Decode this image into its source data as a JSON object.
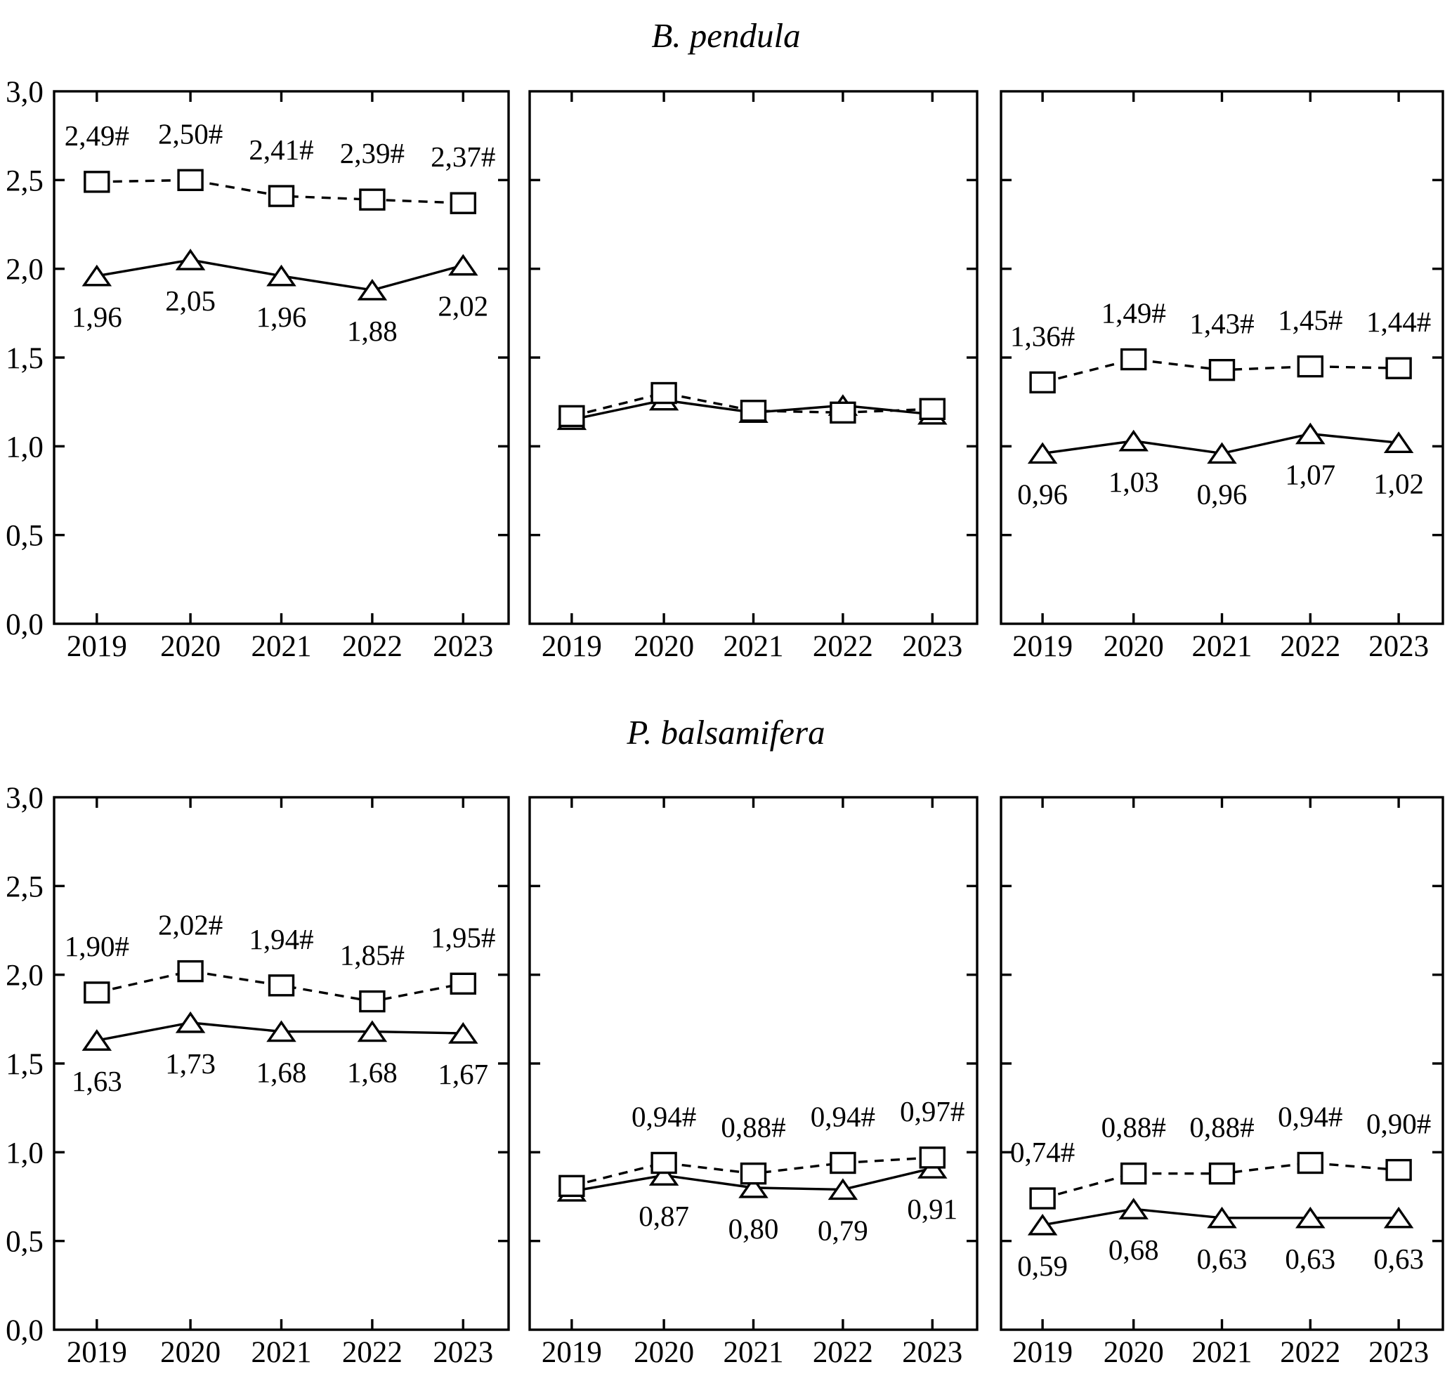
{
  "chart_data": [
    {
      "type": "line",
      "title": "B. pendula",
      "x": [
        "2019",
        "2020",
        "2021",
        "2022",
        "2023"
      ],
      "ylim": [
        0.0,
        3.0
      ],
      "ytick_step": 0.5,
      "ytick_labels": [
        "0,0",
        "0,5",
        "1,0",
        "1,5",
        "2,0",
        "2,5",
        "3,0"
      ],
      "legend": "none",
      "grid": false,
      "panels": [
        {
          "series": [
            {
              "name": "squares-dashed",
              "marker": "square",
              "line": "dashed",
              "values": [
                2.49,
                2.5,
                2.41,
                2.39,
                2.37
              ],
              "point_labels": [
                "2,49#",
                "2,50#",
                "2,41#",
                "2,39#",
                "2,37#"
              ]
            },
            {
              "name": "triangles-solid",
              "marker": "triangle",
              "line": "solid",
              "values": [
                1.96,
                2.05,
                1.96,
                1.88,
                2.02
              ],
              "point_labels": [
                "1,96",
                "2,05",
                "1,96",
                "1,88",
                "2,02"
              ]
            }
          ]
        },
        {
          "series": [
            {
              "name": "squares-dashed",
              "marker": "square",
              "line": "dashed",
              "values": [
                1.17,
                1.3,
                1.2,
                1.19,
                1.21
              ],
              "point_labels": [
                null,
                null,
                null,
                null,
                null
              ]
            },
            {
              "name": "triangles-solid",
              "marker": "triangle",
              "line": "solid",
              "values": [
                1.15,
                1.26,
                1.19,
                1.23,
                1.18
              ],
              "point_labels": [
                null,
                null,
                null,
                null,
                null
              ]
            }
          ]
        },
        {
          "series": [
            {
              "name": "squares-dashed",
              "marker": "square",
              "line": "dashed",
              "values": [
                1.36,
                1.49,
                1.43,
                1.45,
                1.44
              ],
              "point_labels": [
                "1,36#",
                "1,49#",
                "1,43#",
                "1,45#",
                "1,44#"
              ]
            },
            {
              "name": "triangles-solid",
              "marker": "triangle",
              "line": "solid",
              "values": [
                0.96,
                1.03,
                0.96,
                1.07,
                1.02
              ],
              "point_labels": [
                "0,96",
                "1,03",
                "0,96",
                "1,07",
                "1,02"
              ]
            }
          ]
        }
      ]
    },
    {
      "type": "line",
      "title": "P. balsamifera",
      "x": [
        "2019",
        "2020",
        "2021",
        "2022",
        "2023"
      ],
      "ylim": [
        0.0,
        3.0
      ],
      "ytick_step": 0.5,
      "ytick_labels": [
        "0,0",
        "0,5",
        "1,0",
        "1,5",
        "2,0",
        "2,5",
        "3,0"
      ],
      "legend": "none",
      "grid": false,
      "panels": [
        {
          "series": [
            {
              "name": "squares-dashed",
              "marker": "square",
              "line": "dashed",
              "values": [
                1.9,
                2.02,
                1.94,
                1.85,
                1.95
              ],
              "point_labels": [
                "1,90#",
                "2,02#",
                "1,94#",
                "1,85#",
                "1,95#"
              ]
            },
            {
              "name": "triangles-solid",
              "marker": "triangle",
              "line": "solid",
              "values": [
                1.63,
                1.73,
                1.68,
                1.68,
                1.67
              ],
              "point_labels": [
                "1,63",
                "1,73",
                "1,68",
                "1,68",
                "1,67"
              ]
            }
          ]
        },
        {
          "series": [
            {
              "name": "squares-dashed",
              "marker": "square",
              "line": "dashed",
              "values": [
                0.81,
                0.94,
                0.88,
                0.94,
                0.97
              ],
              "point_labels": [
                null,
                "0,94#",
                "0,88#",
                "0,94#",
                "0,97#"
              ]
            },
            {
              "name": "triangles-solid",
              "marker": "triangle",
              "line": "solid",
              "values": [
                0.78,
                0.87,
                0.8,
                0.79,
                0.91
              ],
              "point_labels": [
                null,
                "0,87",
                "0,80",
                "0,79",
                "0,91"
              ]
            }
          ]
        },
        {
          "series": [
            {
              "name": "squares-dashed",
              "marker": "square",
              "line": "dashed",
              "values": [
                0.74,
                0.88,
                0.88,
                0.94,
                0.9
              ],
              "point_labels": [
                "0,74#",
                "0,88#",
                "0,88#",
                "0,94#",
                "0,90#"
              ]
            },
            {
              "name": "triangles-solid",
              "marker": "triangle",
              "line": "solid",
              "values": [
                0.59,
                0.68,
                0.63,
                0.63,
                0.63
              ],
              "point_labels": [
                "0,59",
                "0,68",
                "0,63",
                "0,63",
                "0,63"
              ]
            }
          ]
        }
      ]
    }
  ]
}
